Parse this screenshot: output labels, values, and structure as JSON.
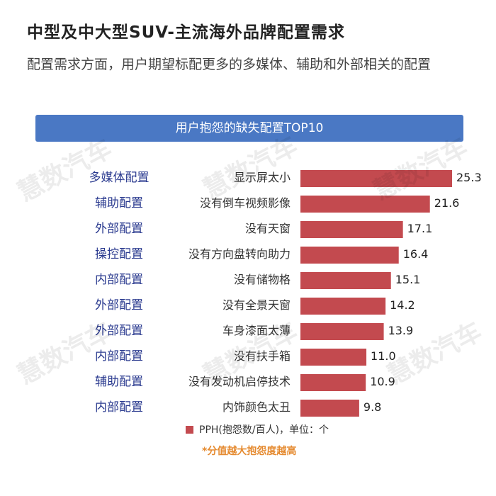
{
  "header": {
    "title": "中型及中大型SUV-主流海外品牌配置需求",
    "subtitle": "配置需求方面，用户期望标配更多的多媒体、辅助和外部相关的配置"
  },
  "watermark": "慧数汽车",
  "colors": {
    "bar": "#c34a4f",
    "banner": "#4a78c4",
    "category_text": "#2a3a8f",
    "note": "#e58a2f"
  },
  "chart_data": {
    "type": "bar",
    "orientation": "horizontal",
    "title": "用户抱怨的缺失配置TOP10",
    "categories": [
      "显示屏太小",
      "没有倒车视频影像",
      "没有天窗",
      "没有方向盘转向助力",
      "没有储物格",
      "没有全景天窗",
      "车身漆面太薄",
      "没有扶手箱",
      "没有发动机启停技术",
      "内饰颜色太丑"
    ],
    "groups": [
      "多媒体配置",
      "辅助配置",
      "外部配置",
      "操控配置",
      "内部配置",
      "外部配置",
      "外部配置",
      "内部配置",
      "辅助配置",
      "内部配置"
    ],
    "values": [
      25.3,
      21.6,
      17.1,
      16.4,
      15.1,
      14.2,
      13.9,
      11.0,
      10.9,
      9.8
    ],
    "value_labels": [
      "25.3",
      "21.6",
      "17.1",
      "16.4",
      "15.1",
      "14.2",
      "13.9",
      "11.0",
      "10.9",
      "9.8"
    ],
    "xlim": [
      0,
      25.3
    ],
    "series": [
      {
        "name": "PPH(抱怨数/百人)，单位：个",
        "values": [
          25.3,
          21.6,
          17.1,
          16.4,
          15.1,
          14.2,
          13.9,
          11.0,
          10.9,
          9.8
        ]
      }
    ],
    "legend": "bottom",
    "note": "*分值越大抱怨度越高"
  }
}
